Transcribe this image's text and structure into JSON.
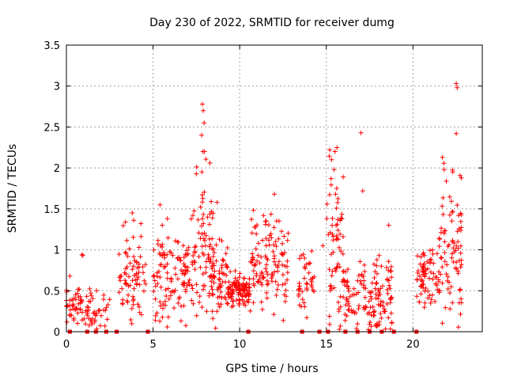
{
  "chart_data": {
    "type": "scatter",
    "title": "Day 230 of 2022, SRMTID for receiver dumg",
    "xlabel": "GPS time / hours",
    "ylabel": "SRMTID / TECUs",
    "xlim": [
      0,
      24
    ],
    "ylim": [
      0,
      3.5
    ],
    "xticks": [
      0,
      5,
      10,
      15,
      20
    ],
    "xtick_labels": [
      "0",
      "5",
      "10",
      "15",
      "20"
    ],
    "yticks": [
      0,
      0.5,
      1,
      1.5,
      2,
      2.5,
      3,
      3.5
    ],
    "ytick_labels": [
      "0",
      "0.5",
      "1",
      "1.5",
      "2",
      "2.5",
      "3",
      "3.5"
    ],
    "grid": true,
    "marker": "+",
    "color": "#ff0000",
    "clusters": [
      {
        "x_start": 0.0,
        "x_end": 1.1,
        "y_mean": 0.3,
        "spread": 0.12,
        "count": 45
      },
      {
        "x_start": 1.1,
        "x_end": 2.5,
        "y_mean": 0.22,
        "spread": 0.14,
        "count": 45
      },
      {
        "x_start": 3.0,
        "x_end": 4.6,
        "y_mean": 0.7,
        "spread": 0.28,
        "count": 75
      },
      {
        "x_start": 5.0,
        "x_end": 7.3,
        "y_mean": 0.65,
        "spread": 0.28,
        "count": 120
      },
      {
        "x_start": 7.3,
        "x_end": 8.5,
        "y_mean": 1.05,
        "spread": 0.45,
        "count": 80
      },
      {
        "x_start": 8.3,
        "x_end": 9.3,
        "y_mean": 0.65,
        "spread": 0.25,
        "count": 60
      },
      {
        "x_start": 9.3,
        "x_end": 10.6,
        "y_mean": 0.5,
        "spread": 0.1,
        "count": 110
      },
      {
        "x_start": 10.6,
        "x_end": 12.8,
        "y_mean": 0.85,
        "spread": 0.3,
        "count": 120
      },
      {
        "x_start": 13.4,
        "x_end": 14.3,
        "y_mean": 0.6,
        "spread": 0.2,
        "count": 40
      },
      {
        "x_start": 15.0,
        "x_end": 16.0,
        "y_mean": 1.0,
        "spread": 0.5,
        "count": 65
      },
      {
        "x_start": 16.0,
        "x_end": 17.4,
        "y_mean": 0.45,
        "spread": 0.25,
        "count": 60
      },
      {
        "x_start": 17.4,
        "x_end": 18.8,
        "y_mean": 0.4,
        "spread": 0.25,
        "count": 85
      },
      {
        "x_start": 20.2,
        "x_end": 21.5,
        "y_mean": 0.65,
        "spread": 0.15,
        "count": 75
      },
      {
        "x_start": 21.5,
        "x_end": 22.8,
        "y_mean": 1.0,
        "spread": 0.45,
        "count": 85
      }
    ],
    "highlights": [
      {
        "x": 7.85,
        "y": 2.78
      },
      {
        "x": 7.9,
        "y": 2.7
      },
      {
        "x": 7.95,
        "y": 2.55
      },
      {
        "x": 7.8,
        "y": 2.4
      },
      {
        "x": 7.88,
        "y": 2.2
      },
      {
        "x": 7.82,
        "y": 1.95
      },
      {
        "x": 8.7,
        "y": 1.58
      },
      {
        "x": 12.0,
        "y": 1.68
      },
      {
        "x": 15.2,
        "y": 2.22
      },
      {
        "x": 15.3,
        "y": 2.1
      },
      {
        "x": 15.5,
        "y": 2.2
      },
      {
        "x": 15.45,
        "y": 1.98
      },
      {
        "x": 15.6,
        "y": 1.75
      },
      {
        "x": 17.0,
        "y": 2.43
      },
      {
        "x": 17.1,
        "y": 1.72
      },
      {
        "x": 22.5,
        "y": 3.03
      },
      {
        "x": 22.55,
        "y": 2.98
      },
      {
        "x": 22.5,
        "y": 2.42
      },
      {
        "x": 21.7,
        "y": 2.13
      },
      {
        "x": 21.8,
        "y": 1.98
      },
      {
        "x": 22.3,
        "y": 1.95
      },
      {
        "x": 18.6,
        "y": 1.3
      },
      {
        "x": 4.3,
        "y": 1.32
      },
      {
        "x": 3.8,
        "y": 1.45
      },
      {
        "x": 0.2,
        "y": 0.68
      },
      {
        "x": 0.9,
        "y": 0.94
      },
      {
        "x": 0.95,
        "y": 0.93
      },
      {
        "x": 14.8,
        "y": 1.05
      },
      {
        "x": 5.4,
        "y": 1.55
      },
      {
        "x": 7.3,
        "y": 1.42
      }
    ],
    "zero_points": [
      0.2,
      1.2,
      1.7,
      2.3,
      2.9,
      4.7,
      10.5,
      13.6,
      14.6,
      15.1,
      16.1,
      16.8,
      17.5,
      18.2,
      18.9,
      20.2
    ]
  }
}
